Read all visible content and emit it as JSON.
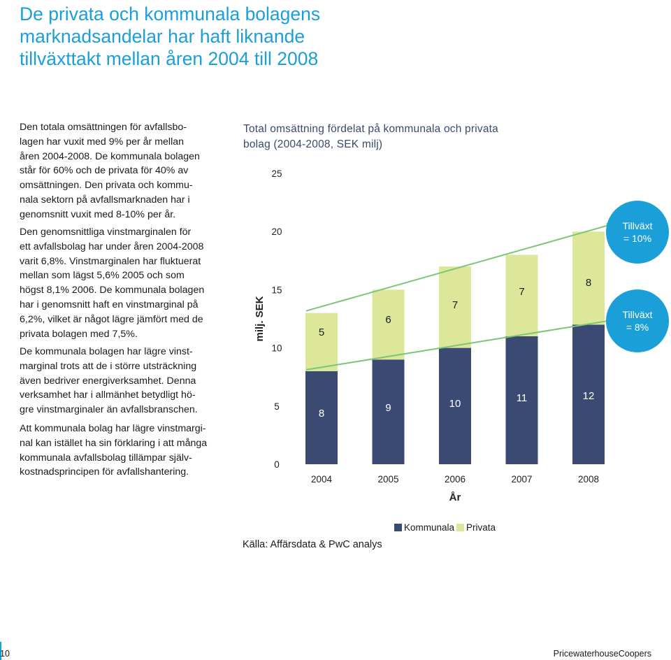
{
  "page": {
    "title_lines": [
      "De privata och kommunala bolagens",
      "marknadsandelar har haft liknande",
      "tillväxttakt mellan åren 2004 till 2008"
    ],
    "paragraphs": [
      [
        "Den totala omsättningen för avfallsbo-",
        "lagen har vuxit med 9% per år mellan",
        "åren 2004-2008. De kommunala bolagen",
        "står för 60% och de privata för 40% av",
        "omsättningen. Den privata och kommu-",
        "nala sektorn på avfallsmarknaden har i",
        "genomsnitt vuxit med 8-10% per år."
      ],
      [
        "Den genomsnittliga vinstmarginalen för",
        "ett avfallsbolag har under åren 2004-2008",
        "varit 6,8%. Vinstmarginalen har fluktuerat",
        "mellan som lägst 5,6% 2005 och som",
        "högst 8,1% 2006. De kommunala bolagen",
        "har i genomsnitt haft en vinstmarginal på",
        "6,2%, vilket är något lägre jämfört med de",
        "privata bolagen med 7,5%."
      ],
      [
        "De kommunala bolagen har lägre vinst-",
        "marginal trots att de i större utsträckning",
        "även bedriver energiverksamhet. Denna",
        "verksamhet har i allmänhet betydligt hö-",
        "gre vinstmarginaler än avfallsbranschen."
      ],
      [
        "Att kommunala bolag har lägre vinstmargi-",
        "nal kan istället ha sin förklaring i att många",
        "kommunala avfallsbolag tillämpar själv-",
        "kostnadsprincipen för avfallshantering."
      ]
    ],
    "source": "Källa: Affärsdata & PwC analys",
    "page_number": "10",
    "company": "PricewaterhouseCoopers"
  },
  "colors": {
    "accent": "#1a9fd8",
    "kommunala": "#3a4a72",
    "privata": "#dde79a",
    "arrow": "#7cc576"
  },
  "chart_data": {
    "type": "bar",
    "stacked": true,
    "title_lines": [
      "Total omsättning fördelat på kommunala och privata",
      "bolag (2004-2008, SEK milj)"
    ],
    "categories": [
      "2004",
      "2005",
      "2006",
      "2007",
      "2008"
    ],
    "series": [
      {
        "name": "Kommunala",
        "values": [
          8,
          9,
          10,
          11,
          12
        ],
        "labels": [
          "8",
          "9",
          "10",
          "11",
          "12"
        ]
      },
      {
        "name": "Privata",
        "values": [
          5,
          6,
          7,
          7,
          8
        ],
        "labels": [
          "5",
          "6",
          "7",
          "7",
          "8"
        ]
      }
    ],
    "xlabel": "År",
    "ylabel": "milj. SEK",
    "ylim": [
      0,
      25
    ],
    "yticks": [
      0,
      5,
      10,
      15,
      20,
      25
    ],
    "legend": [
      "Kommunala",
      "Privata"
    ],
    "legend_position": "bottom-right",
    "annotations": [
      {
        "series": "Privata",
        "text_lines": [
          "Tillväxt",
          "= 10%"
        ]
      },
      {
        "series": "Kommunala",
        "text_lines": [
          "Tillväxt",
          "= 8%"
        ]
      }
    ]
  }
}
